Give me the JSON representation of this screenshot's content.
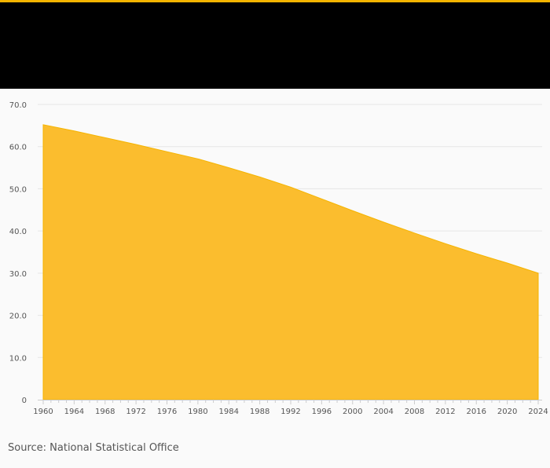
{
  "source": "Source: National Statistical Office",
  "colors": {
    "accent": "#f5b400",
    "header": "#000000",
    "area_fill": "#fbbd2e",
    "grid": "#e6e6e6",
    "axis": "#cccccc",
    "tick_text": "#555555"
  },
  "chart_data": {
    "type": "area",
    "title": "",
    "xlabel": "",
    "ylabel": "",
    "xlim": [
      1960,
      2024
    ],
    "ylim": [
      0,
      70
    ],
    "y_ticks": [
      0,
      10,
      20,
      30,
      40,
      50,
      60,
      70
    ],
    "y_tick_labels": [
      "0",
      "10.0",
      "20.0",
      "30.0",
      "40.0",
      "50.0",
      "60.0",
      "70.0"
    ],
    "x_ticks": [
      1960,
      1964,
      1968,
      1972,
      1976,
      1980,
      1984,
      1988,
      1992,
      1996,
      2000,
      2004,
      2008,
      2012,
      2016,
      2020,
      2024
    ],
    "grid": true,
    "legend": "none",
    "x": [
      1960,
      1964,
      1968,
      1972,
      1976,
      1980,
      1984,
      1988,
      1992,
      1996,
      2000,
      2004,
      2008,
      2012,
      2016,
      2020,
      2024
    ],
    "values": [
      65.2,
      63.7,
      62.1,
      60.5,
      58.8,
      57.1,
      55.0,
      52.8,
      50.4,
      47.6,
      44.8,
      42.1,
      39.5,
      37.0,
      34.6,
      32.4,
      30.0
    ]
  }
}
